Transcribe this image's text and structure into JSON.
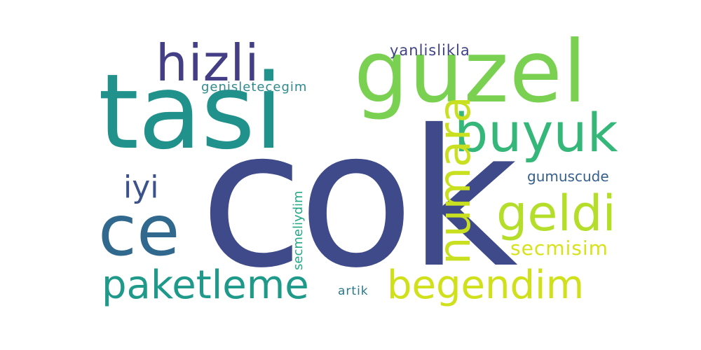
{
  "words": {
    "cok": {
      "text": "cok",
      "color": "#3f4a8a"
    },
    "tasi": {
      "text": "tasi",
      "color": "#21918c"
    },
    "guzel": {
      "text": "guzel",
      "color": "#7ad151"
    },
    "hizli": {
      "text": "hizli",
      "color": "#433e85"
    },
    "buyuk": {
      "text": "buyuk",
      "color": "#35b779"
    },
    "numara": {
      "text": "numara",
      "color": "#c8e020"
    },
    "geldi": {
      "text": "geldi",
      "color": "#b5de2b"
    },
    "iyi": {
      "text": "iyi",
      "color": "#3b528b"
    },
    "ce": {
      "text": "ce",
      "color": "#31688e"
    },
    "paketleme": {
      "text": "paketleme",
      "color": "#1f9a8a"
    },
    "begendim": {
      "text": "begendim",
      "color": "#d0e11c"
    },
    "secmisim": {
      "text": "secmisim",
      "color": "#d8e219"
    },
    "gumuscude": {
      "text": "gumuscude",
      "color": "#355f8d"
    },
    "yanlislikla": {
      "text": "yanlislikla",
      "color": "#404387"
    },
    "genisletecegim": {
      "text": "genisletecegim",
      "color": "#2e8a8c"
    },
    "secmeliydim": {
      "text": "secmeliydim",
      "color": "#22a884"
    },
    "artik": {
      "text": "artik",
      "color": "#2a788e"
    }
  }
}
